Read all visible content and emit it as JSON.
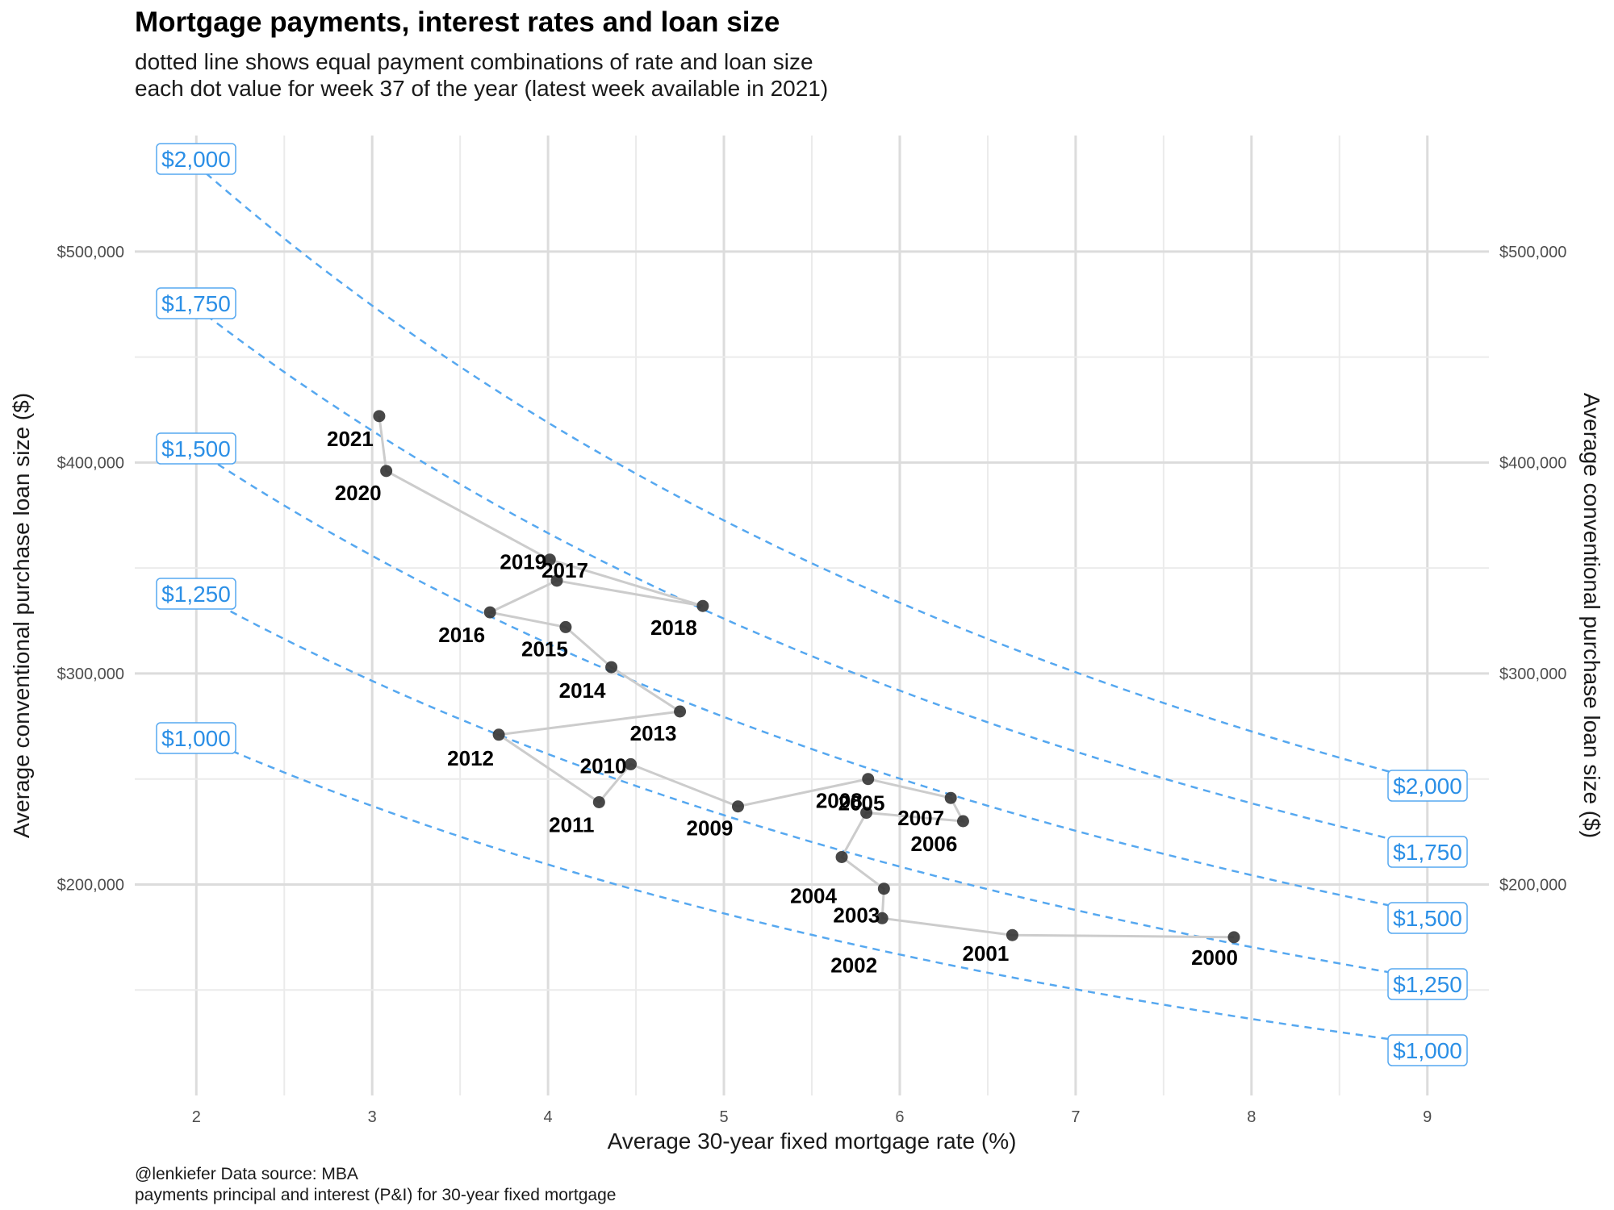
{
  "title": "Mortgage payments, interest rates and loan size",
  "subtitle_lines": [
    "dotted line shows equal payment combinations of rate and loan size",
    "each dot value for week 37 of the year (latest week available in 2021)"
  ],
  "caption_lines": [
    "@lenkiefer Data source: MBA",
    "payments principal and interest (P&I) for 30-year fixed mortgage"
  ],
  "colors": {
    "payment_curve": "#56a8f0",
    "payment_label": "#2b8fe6",
    "point": "#333333",
    "path": "#cccccc",
    "grid_major": "#dcdcdc",
    "grid_minor": "#ebebeb"
  },
  "chart_data": {
    "type": "scatter",
    "xlabel": "Average 30-year fixed mortgage rate (%)",
    "ylabel": "Average conventional purchase loan size ($)",
    "ylabel_right": "Average conventional purchase loan size ($)",
    "xlim": [
      1.65,
      9.35
    ],
    "ylim": [
      100000,
      555000
    ],
    "x_ticks": [
      2,
      3,
      4,
      5,
      6,
      7,
      8,
      9
    ],
    "x_tick_labels": [
      "2",
      "3",
      "4",
      "5",
      "6",
      "7",
      "8",
      "9"
    ],
    "y_ticks": [
      200000,
      300000,
      400000,
      500000
    ],
    "y_tick_labels": [
      "$200,000",
      "$300,000",
      "$400,000",
      "$500,000"
    ],
    "grid": true,
    "points": [
      {
        "year": "2000",
        "x": 7.9,
        "y": 175000
      },
      {
        "year": "2001",
        "x": 6.64,
        "y": 176000
      },
      {
        "year": "2002",
        "x": 5.9,
        "y": 184000
      },
      {
        "year": "2003",
        "x": 5.91,
        "y": 198000
      },
      {
        "year": "2004",
        "x": 5.67,
        "y": 213000
      },
      {
        "year": "2005",
        "x": 5.81,
        "y": 234000
      },
      {
        "year": "2006",
        "x": 6.36,
        "y": 230000
      },
      {
        "year": "2007",
        "x": 6.29,
        "y": 241000
      },
      {
        "year": "2008",
        "x": 5.82,
        "y": 250000
      },
      {
        "year": "2009",
        "x": 5.08,
        "y": 237000
      },
      {
        "year": "2010",
        "x": 4.47,
        "y": 257000
      },
      {
        "year": "2011",
        "x": 4.29,
        "y": 239000
      },
      {
        "year": "2012",
        "x": 3.72,
        "y": 271000
      },
      {
        "year": "2013",
        "x": 4.75,
        "y": 282000
      },
      {
        "year": "2014",
        "x": 4.36,
        "y": 303000
      },
      {
        "year": "2015",
        "x": 4.1,
        "y": 322000
      },
      {
        "year": "2016",
        "x": 3.67,
        "y": 329000
      },
      {
        "year": "2017",
        "x": 4.05,
        "y": 344000
      },
      {
        "year": "2018",
        "x": 4.88,
        "y": 332000
      },
      {
        "year": "2019",
        "x": 4.01,
        "y": 354000
      },
      {
        "year": "2020",
        "x": 3.08,
        "y": 396000
      },
      {
        "year": "2021",
        "x": 3.04,
        "y": 422000
      }
    ],
    "payment_curves": [
      {
        "payment": 1000,
        "label": "$1,000"
      },
      {
        "payment": 1250,
        "label": "$1,250"
      },
      {
        "payment": 1500,
        "label": "$1,500"
      },
      {
        "payment": 1750,
        "label": "$1,750"
      },
      {
        "payment": 2000,
        "label": "$2,000"
      }
    ]
  }
}
